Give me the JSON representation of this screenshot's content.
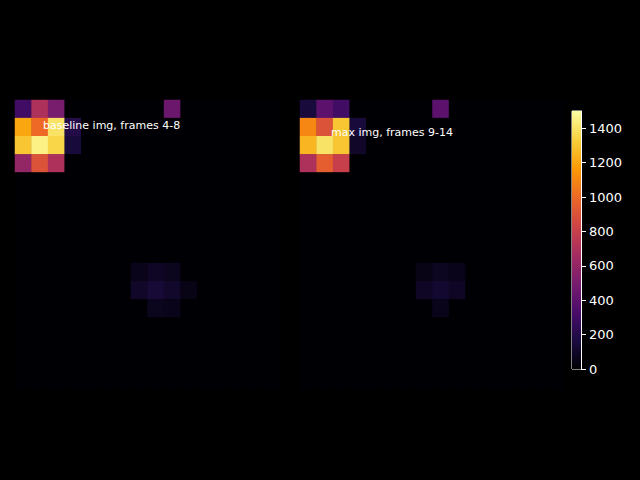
{
  "chart_data": {
    "type": "heatmap",
    "panels": [
      {
        "title": "baseline img, frames 4-8",
        "cells": [
          [
            300,
            700,
            500,
            0,
            0,
            0,
            0,
            0,
            0,
            450,
            0,
            0,
            0,
            0,
            0,
            0
          ],
          [
            1200,
            1000,
            1400,
            200,
            0,
            0,
            0,
            0,
            0,
            0,
            0,
            0,
            0,
            0,
            0,
            0
          ],
          [
            1300,
            1450,
            1350,
            150,
            0,
            0,
            0,
            0,
            0,
            0,
            0,
            0,
            0,
            0,
            0,
            0
          ],
          [
            600,
            900,
            700,
            0,
            0,
            0,
            0,
            0,
            0,
            0,
            0,
            0,
            0,
            0,
            0,
            0
          ],
          [
            0,
            0,
            0,
            0,
            0,
            0,
            0,
            0,
            0,
            0,
            0,
            0,
            0,
            0,
            0,
            0
          ],
          [
            0,
            0,
            0,
            0,
            0,
            0,
            0,
            0,
            0,
            0,
            0,
            0,
            0,
            0,
            0,
            0
          ],
          [
            0,
            0,
            0,
            0,
            0,
            0,
            0,
            0,
            0,
            0,
            0,
            0,
            0,
            0,
            0,
            0
          ],
          [
            0,
            0,
            0,
            0,
            0,
            0,
            0,
            0,
            0,
            0,
            0,
            0,
            0,
            0,
            0,
            0
          ],
          [
            0,
            0,
            0,
            0,
            0,
            0,
            0,
            0,
            0,
            0,
            0,
            0,
            0,
            0,
            0,
            0
          ],
          [
            0,
            0,
            0,
            0,
            0,
            0,
            0,
            60,
            90,
            70,
            0,
            0,
            0,
            0,
            0,
            0
          ],
          [
            0,
            0,
            0,
            0,
            0,
            0,
            0,
            100,
            140,
            110,
            50,
            0,
            0,
            0,
            0,
            0
          ],
          [
            0,
            0,
            0,
            0,
            0,
            0,
            0,
            0,
            70,
            60,
            0,
            0,
            0,
            0,
            0,
            0
          ],
          [
            0,
            0,
            0,
            0,
            0,
            0,
            0,
            0,
            0,
            0,
            0,
            0,
            0,
            0,
            0,
            0
          ],
          [
            0,
            0,
            0,
            0,
            0,
            0,
            0,
            0,
            0,
            0,
            0,
            0,
            0,
            0,
            0,
            0
          ],
          [
            0,
            0,
            0,
            0,
            0,
            0,
            0,
            0,
            0,
            0,
            0,
            0,
            0,
            0,
            0,
            0
          ],
          [
            0,
            0,
            0,
            0,
            0,
            0,
            0,
            0,
            0,
            0,
            0,
            0,
            0,
            0,
            0,
            0
          ]
        ]
      },
      {
        "title": "max img, frames 9-14",
        "cells": [
          [
            150,
            400,
            300,
            0,
            0,
            0,
            0,
            0,
            400,
            0,
            0,
            0,
            0,
            0,
            0,
            0
          ],
          [
            1100,
            900,
            1300,
            150,
            0,
            0,
            0,
            0,
            0,
            0,
            0,
            0,
            0,
            0,
            0,
            0
          ],
          [
            1250,
            1400,
            1300,
            100,
            0,
            0,
            0,
            0,
            0,
            0,
            0,
            0,
            0,
            0,
            0,
            0
          ],
          [
            700,
            950,
            800,
            0,
            0,
            0,
            0,
            0,
            0,
            0,
            0,
            0,
            0,
            0,
            0,
            0
          ],
          [
            0,
            0,
            0,
            0,
            0,
            0,
            0,
            0,
            0,
            0,
            0,
            0,
            0,
            0,
            0,
            0
          ],
          [
            0,
            0,
            0,
            0,
            0,
            0,
            0,
            0,
            0,
            0,
            0,
            0,
            0,
            0,
            0,
            0
          ],
          [
            0,
            0,
            0,
            0,
            0,
            0,
            0,
            0,
            0,
            0,
            0,
            0,
            0,
            0,
            0,
            0
          ],
          [
            0,
            0,
            0,
            0,
            0,
            0,
            0,
            0,
            0,
            0,
            0,
            0,
            0,
            0,
            0,
            0
          ],
          [
            0,
            0,
            0,
            0,
            0,
            0,
            0,
            0,
            0,
            0,
            0,
            0,
            0,
            0,
            0,
            0
          ],
          [
            0,
            0,
            0,
            0,
            0,
            0,
            0,
            50,
            80,
            60,
            0,
            0,
            0,
            0,
            0,
            0
          ],
          [
            0,
            0,
            0,
            0,
            0,
            0,
            0,
            90,
            120,
            90,
            0,
            0,
            0,
            0,
            0,
            0
          ],
          [
            0,
            0,
            0,
            0,
            0,
            0,
            0,
            0,
            60,
            0,
            0,
            0,
            0,
            0,
            0,
            0
          ],
          [
            0,
            0,
            0,
            0,
            0,
            0,
            0,
            0,
            0,
            0,
            0,
            0,
            0,
            0,
            0,
            0
          ],
          [
            0,
            0,
            0,
            0,
            0,
            0,
            0,
            0,
            0,
            0,
            0,
            0,
            0,
            0,
            0,
            0
          ],
          [
            0,
            0,
            0,
            0,
            0,
            0,
            0,
            0,
            0,
            0,
            0,
            0,
            0,
            0,
            0,
            0
          ],
          [
            0,
            0,
            0,
            0,
            0,
            0,
            0,
            0,
            0,
            0,
            0,
            0,
            0,
            0,
            0,
            0
          ]
        ]
      }
    ],
    "colorbar": {
      "range": [
        0,
        1500
      ],
      "ticks": [
        0,
        200,
        400,
        600,
        800,
        1000,
        1200,
        1400
      ]
    }
  }
}
